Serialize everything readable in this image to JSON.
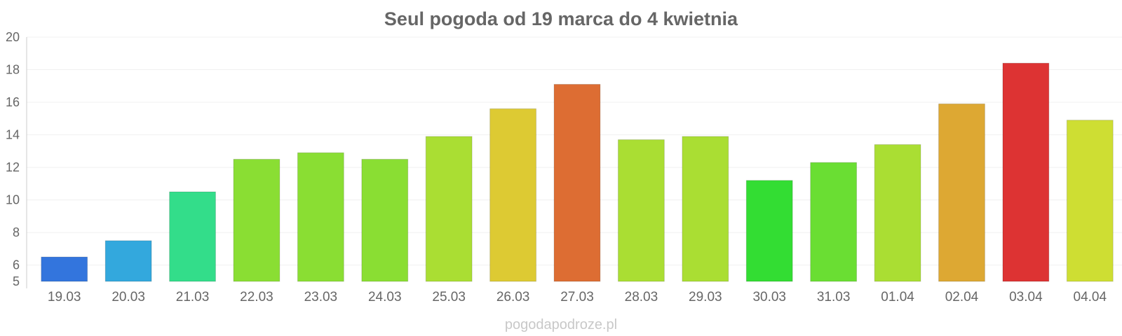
{
  "chart_data": {
    "type": "bar",
    "title": "Seul pogoda od 19 marca do 4 kwietnia",
    "xlabel": "",
    "ylabel": "",
    "categories": [
      "19.03",
      "20.03",
      "21.03",
      "22.03",
      "23.03",
      "24.03",
      "25.03",
      "26.03",
      "27.03",
      "28.03",
      "29.03",
      "30.03",
      "31.03",
      "01.04",
      "02.04",
      "03.04",
      "04.04"
    ],
    "values": [
      6.5,
      7.5,
      10.5,
      12.5,
      12.9,
      12.5,
      13.9,
      15.6,
      17.1,
      13.7,
      13.9,
      11.2,
      12.3,
      13.4,
      15.9,
      18.4,
      14.9
    ],
    "colors": [
      "#3375dd",
      "#33a8dd",
      "#33dd8a",
      "#8ade33",
      "#8ade33",
      "#8ade33",
      "#aade33",
      "#ddca33",
      "#dd6d33",
      "#aade33",
      "#aade33",
      "#33dd33",
      "#6ade33",
      "#aade33",
      "#dda833",
      "#dd3333",
      "#cede33"
    ],
    "ylim": [
      5,
      20
    ],
    "yticks": [
      5,
      6,
      8,
      10,
      12,
      14,
      16,
      18,
      20
    ],
    "grid": true,
    "legend": "none"
  },
  "watermark": "pogodapodroze.pl"
}
